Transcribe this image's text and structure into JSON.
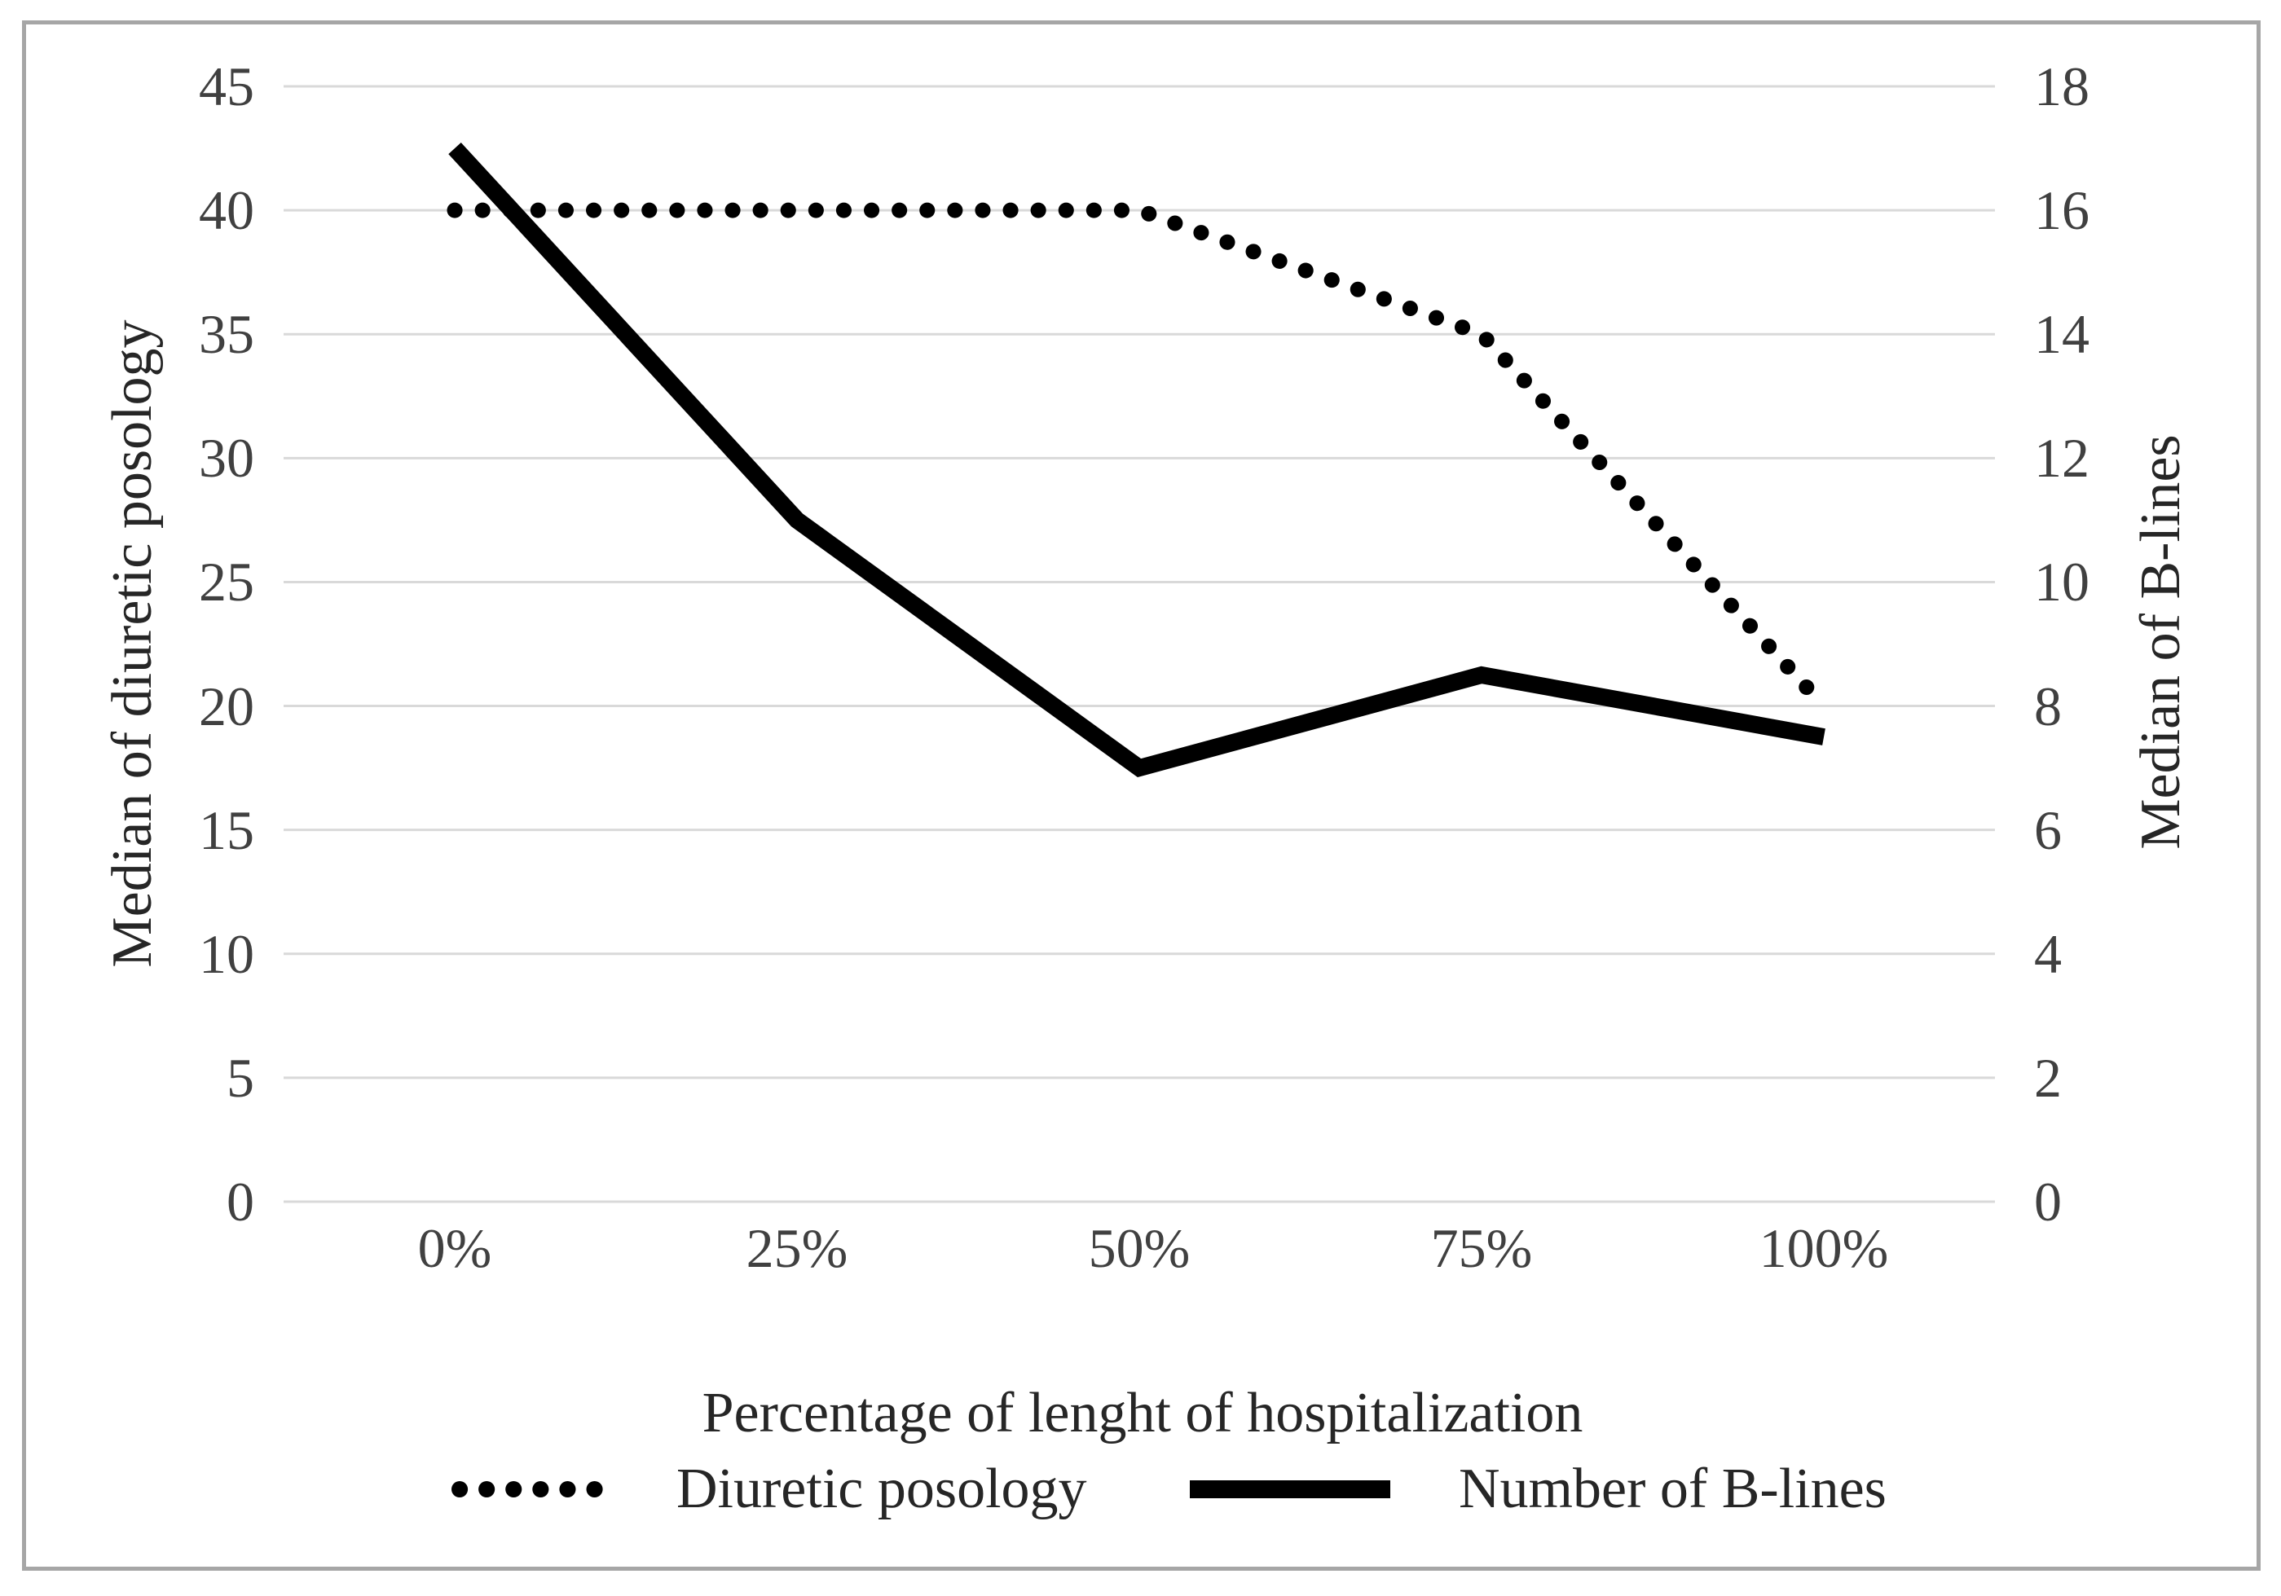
{
  "figure": {
    "background": "#ffffff",
    "border_color": "#a6a6a6"
  },
  "chart_data": {
    "type": "line",
    "categories": [
      "0%",
      "25%",
      "50%",
      "75%",
      "100%"
    ],
    "series": [
      {
        "name": "Diuretic posology",
        "axis": "left",
        "style": "dotted",
        "color": "#000000",
        "values": [
          40,
          40,
          40,
          35,
          20
        ]
      },
      {
        "name": "Number of B-lines",
        "axis": "right",
        "style": "solid",
        "color": "#000000",
        "values": [
          17,
          11,
          7,
          8.5,
          7.5
        ]
      }
    ],
    "axes": {
      "left": {
        "title": "Median of diuretic posology",
        "min": 0,
        "max": 45,
        "step": 5
      },
      "right": {
        "title": "Median of B-lines",
        "min": 0,
        "max": 18,
        "step": 2
      }
    },
    "xlabel": "Percentage of lenght of hospitalization",
    "grid": "horizontal",
    "gridline_color": "#d9d9d9",
    "tick_color": "#404040",
    "text_color": "#262626",
    "legend_position": "bottom"
  }
}
